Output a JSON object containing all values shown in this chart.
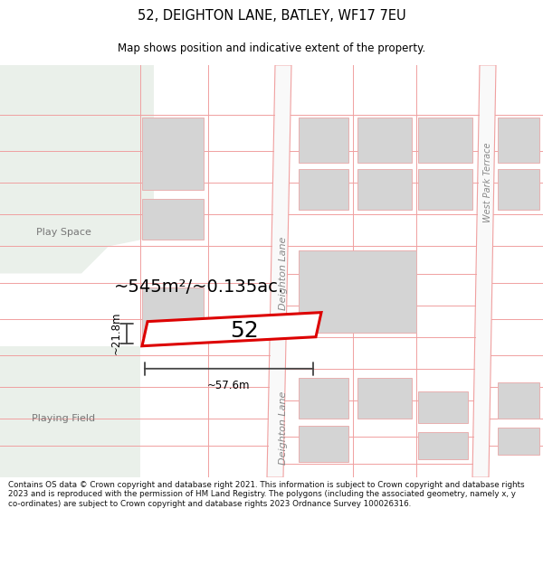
{
  "title": "52, DEIGHTON LANE, BATLEY, WF17 7EU",
  "subtitle": "Map shows position and indicative extent of the property.",
  "area_text": "~545m²/~0.135ac.",
  "width_label": "~57.6m",
  "height_label": "~21.8m",
  "number_label": "52",
  "play_space_label": "Play Space",
  "playing_field_label": "Playing Field",
  "deighton_lane_label": "Deighton Lane",
  "west_park_label": "West Park Terrace",
  "copyright_text": "Contains OS data © Crown copyright and database right 2021. This information is subject to Crown copyright and database rights 2023 and is reproduced with the permission of HM Land Registry. The polygons (including the associated geometry, namely x, y co-ordinates) are subject to Crown copyright and database rights 2023 Ordnance Survey 100026316.",
  "map_bg": "#ffffff",
  "green_area_color": "#e8ede8",
  "plot_outline_color": "#dd0000",
  "road_line_color": "#f0a0a0",
  "building_fill": "#d4d4d4",
  "building_outline": "#e8b0b0",
  "dim_line_color": "#444444",
  "title_color": "#000000"
}
